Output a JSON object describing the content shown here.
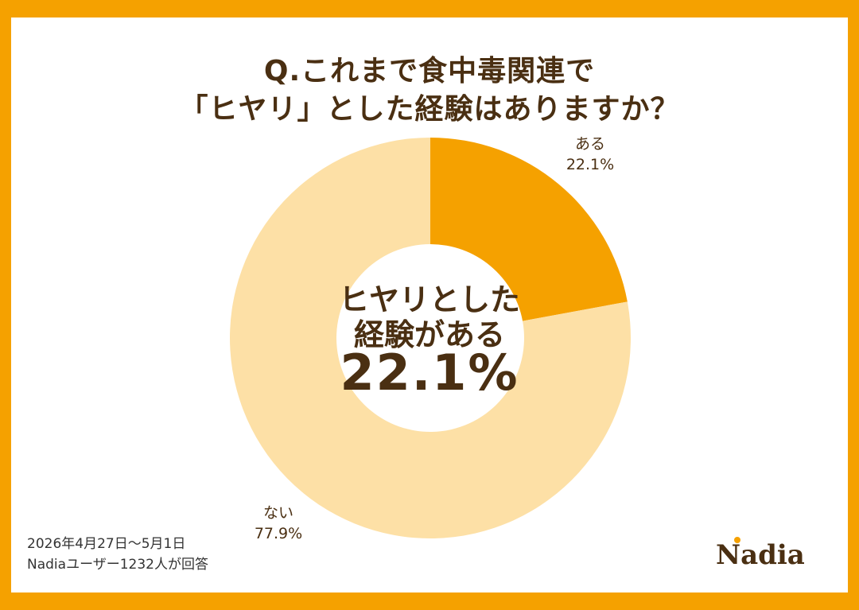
{
  "title": {
    "line1": "Q.これまで食中毒関連で",
    "line2": "「ヒヤリ」とした経験はありますか？"
  },
  "center": {
    "line1": "ヒヤリとした",
    "line2": "経験がある",
    "value": "22.1%"
  },
  "footnote": {
    "date": "2026年4月27日〜5月1日",
    "respondents": "Nadiaユーザー1232人が回答"
  },
  "logo": {
    "text": "Nadia"
  },
  "colors": {
    "frame": "#f5a100",
    "slice_yes": "#f5a100",
    "slice_no": "#fde0a6",
    "text": "#4a2f12"
  },
  "chart_data": {
    "type": "pie",
    "donut": true,
    "slices": [
      {
        "label": "ある",
        "value": 22.1,
        "value_text": "22.1%"
      },
      {
        "label": "ない",
        "value": 77.9,
        "value_text": "77.9%"
      }
    ]
  }
}
